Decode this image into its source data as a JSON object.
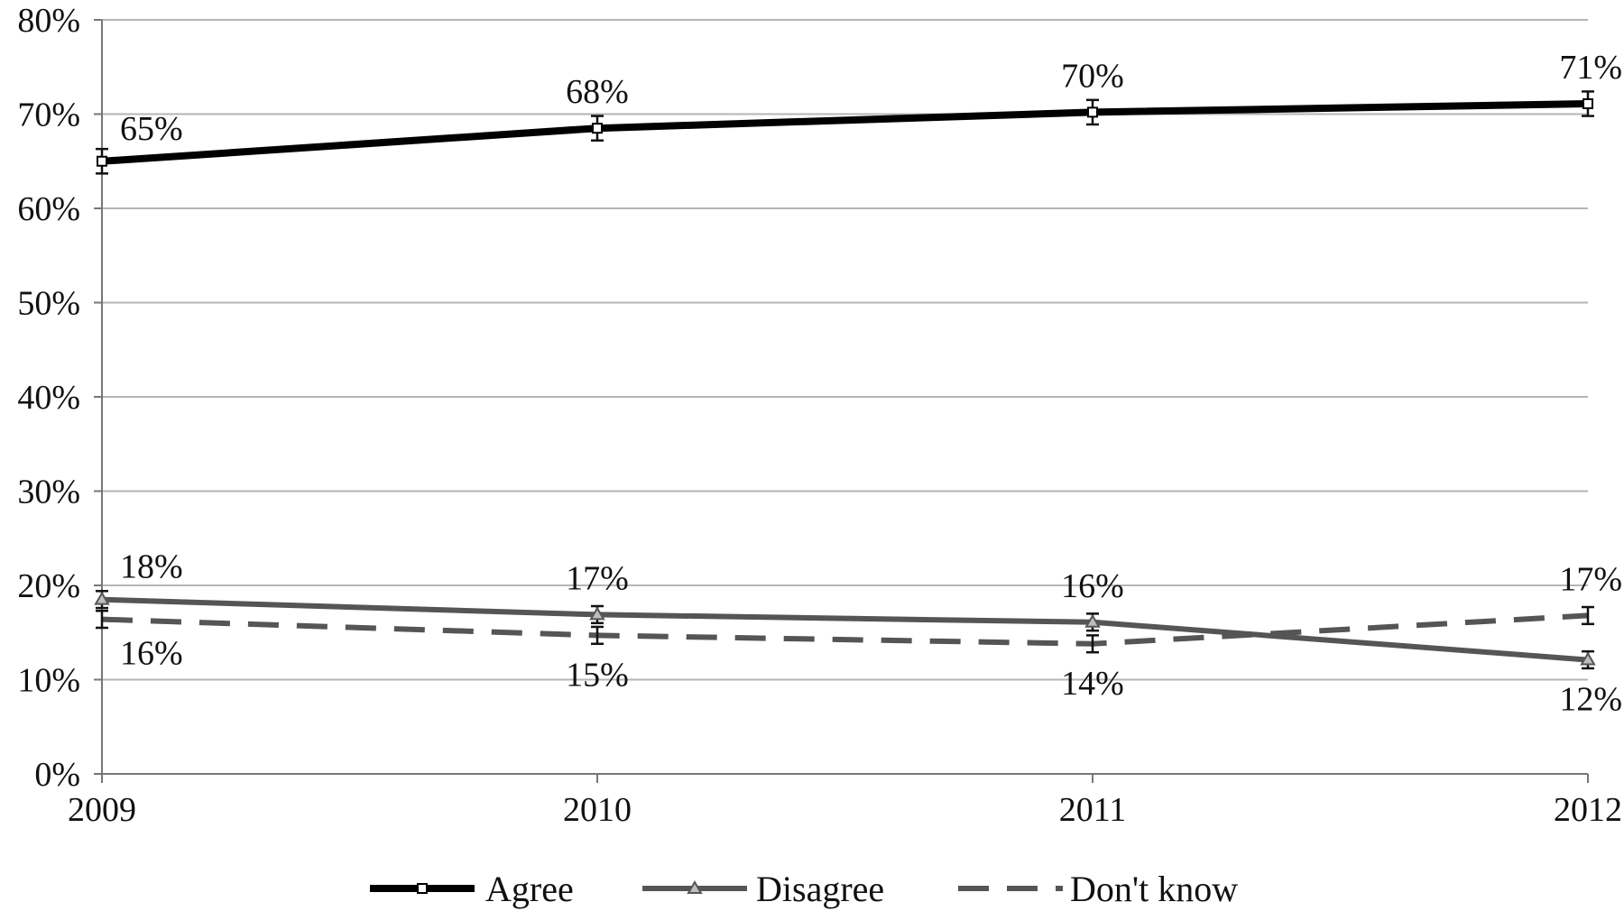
{
  "chart_data": {
    "type": "line",
    "categories": [
      "2009",
      "2010",
      "2011",
      "2012"
    ],
    "ylim": [
      0,
      80
    ],
    "yticks": [
      0,
      10,
      20,
      30,
      40,
      50,
      60,
      70,
      80
    ],
    "ytick_labels": [
      "0%",
      "10%",
      "20%",
      "30%",
      "40%",
      "50%",
      "60%",
      "70%",
      "80%"
    ],
    "grid": true,
    "legend_position": "bottom",
    "series": [
      {
        "name": "Agree",
        "values": [
          65,
          68.5,
          70.2,
          71.1
        ],
        "labels": [
          "65%",
          "68%",
          "70%",
          "71%"
        ],
        "label_side": [
          "above",
          "above",
          "above",
          "above"
        ],
        "color": "#000000",
        "dash": "",
        "marker": "square",
        "error": 1.3
      },
      {
        "name": "Disagree",
        "values": [
          18.5,
          16.9,
          16.1,
          12.1
        ],
        "labels": [
          "18%",
          "17%",
          "16%",
          "12%"
        ],
        "label_side": [
          "above",
          "above",
          "above",
          "below"
        ],
        "color": "#555555",
        "dash": "",
        "marker": "triangle",
        "error": 0.9
      },
      {
        "name": "Don't know",
        "values": [
          16.4,
          14.7,
          13.8,
          16.8
        ],
        "labels": [
          "16%",
          "15%",
          "14%",
          "17%"
        ],
        "label_side": [
          "below",
          "below",
          "below",
          "above"
        ],
        "color": "#555555",
        "dash": "dashed",
        "marker": "none",
        "error": 0.9
      }
    ]
  }
}
